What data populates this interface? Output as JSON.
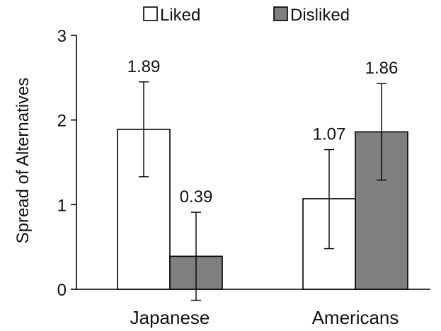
{
  "chart_data": {
    "type": "bar",
    "ylabel": "Spread of Alternatives",
    "categories": [
      "Japanese",
      "Americans"
    ],
    "series": [
      {
        "name": "Liked",
        "color": "#ffffff",
        "values": [
          1.89,
          1.07
        ],
        "value_labels": [
          "1.89",
          "1.07"
        ],
        "error_low": [
          1.33,
          0.48
        ],
        "error_high": [
          2.45,
          1.65
        ]
      },
      {
        "name": "Disliked",
        "color": "#7f7f7f",
        "values": [
          0.39,
          1.86
        ],
        "value_labels": [
          "0.39",
          "1.86"
        ],
        "error_low": [
          -0.13,
          1.29
        ],
        "error_high": [
          0.91,
          2.43
        ]
      }
    ],
    "ylim": [
      0,
      3
    ],
    "yticks": [
      0,
      1,
      2,
      3
    ],
    "grid": false,
    "legend": "top"
  }
}
